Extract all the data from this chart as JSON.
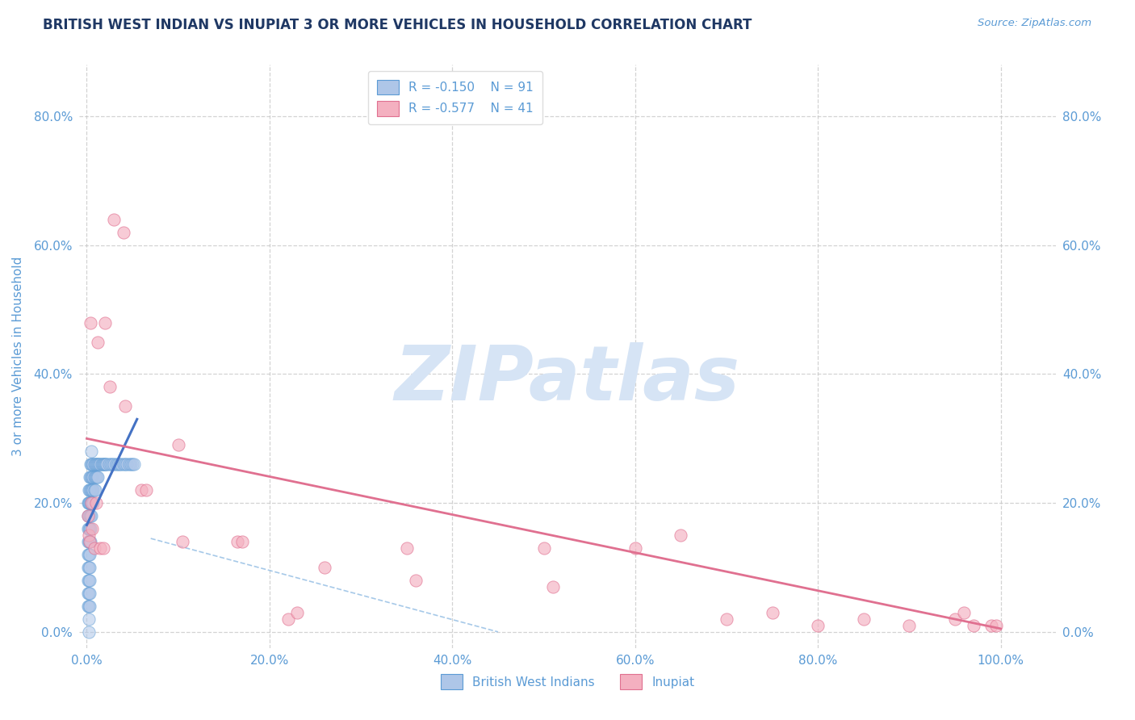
{
  "title": "BRITISH WEST INDIAN VS INUPIAT 3 OR MORE VEHICLES IN HOUSEHOLD CORRELATION CHART",
  "source_text": "Source: ZipAtlas.com",
  "ylabel": "3 or more Vehicles in Household",
  "xlim": [
    -0.008,
    1.06
  ],
  "ylim": [
    -0.025,
    0.88
  ],
  "xticks": [
    0.0,
    0.2,
    0.4,
    0.6,
    0.8,
    1.0
  ],
  "xtick_labels": [
    "0.0%",
    "20.0%",
    "40.0%",
    "60.0%",
    "80.0%",
    "100.0%"
  ],
  "yticks": [
    0.0,
    0.2,
    0.4,
    0.6,
    0.8
  ],
  "ytick_labels": [
    "0.0%",
    "20.0%",
    "40.0%",
    "60.0%",
    "80.0%"
  ],
  "title_color": "#1F3864",
  "title_fontsize": 12,
  "axis_color": "#5B9BD5",
  "tick_color": "#5B9BD5",
  "grid_color": "#C8C8C8",
  "background_color": "#FFFFFF",
  "watermark_text": "ZIPatlas",
  "legend_r_blue": "-0.150",
  "legend_n_blue": "91",
  "legend_r_pink": "-0.577",
  "legend_n_pink": "41",
  "blue_fill": "#AEC6E8",
  "blue_edge": "#5B9BD5",
  "pink_fill": "#F4B0C0",
  "pink_edge": "#E07090",
  "blue_line_color": "#4472C4",
  "pink_line_color": "#E07090",
  "dashed_line_color": "#9DC3E6",
  "watermark_color": "#D6E4F5",
  "watermark_fontsize": 68,
  "blue_x": [
    0.001,
    0.001,
    0.001,
    0.001,
    0.001,
    0.001,
    0.001,
    0.001,
    0.001,
    0.002,
    0.002,
    0.002,
    0.002,
    0.002,
    0.002,
    0.002,
    0.002,
    0.002,
    0.002,
    0.002,
    0.002,
    0.002,
    0.003,
    0.003,
    0.003,
    0.003,
    0.003,
    0.003,
    0.003,
    0.003,
    0.003,
    0.003,
    0.003,
    0.004,
    0.004,
    0.004,
    0.004,
    0.004,
    0.004,
    0.004,
    0.005,
    0.005,
    0.005,
    0.005,
    0.005,
    0.005,
    0.006,
    0.006,
    0.006,
    0.006,
    0.007,
    0.007,
    0.007,
    0.007,
    0.008,
    0.008,
    0.008,
    0.009,
    0.009,
    0.009,
    0.01,
    0.01,
    0.011,
    0.011,
    0.012,
    0.012,
    0.013,
    0.014,
    0.015,
    0.016,
    0.017,
    0.018,
    0.019,
    0.02,
    0.021,
    0.022,
    0.024,
    0.026,
    0.028,
    0.03,
    0.032,
    0.034,
    0.036,
    0.038,
    0.04,
    0.042,
    0.044,
    0.046,
    0.048,
    0.05,
    0.052
  ],
  "blue_y": [
    0.2,
    0.18,
    0.16,
    0.14,
    0.12,
    0.1,
    0.08,
    0.06,
    0.04,
    0.22,
    0.2,
    0.18,
    0.16,
    0.14,
    0.12,
    0.1,
    0.08,
    0.06,
    0.04,
    0.02,
    0.0,
    0.2,
    0.24,
    0.22,
    0.2,
    0.18,
    0.16,
    0.14,
    0.12,
    0.1,
    0.08,
    0.06,
    0.04,
    0.26,
    0.24,
    0.22,
    0.2,
    0.18,
    0.16,
    0.14,
    0.28,
    0.26,
    0.24,
    0.22,
    0.2,
    0.18,
    0.26,
    0.24,
    0.22,
    0.2,
    0.26,
    0.24,
    0.22,
    0.2,
    0.26,
    0.24,
    0.22,
    0.26,
    0.24,
    0.22,
    0.26,
    0.24,
    0.26,
    0.24,
    0.26,
    0.24,
    0.26,
    0.26,
    0.26,
    0.26,
    0.26,
    0.26,
    0.26,
    0.26,
    0.26,
    0.26,
    0.26,
    0.26,
    0.26,
    0.26,
    0.26,
    0.26,
    0.26,
    0.26,
    0.26,
    0.26,
    0.26,
    0.26,
    0.26,
    0.26,
    0.26
  ],
  "pink_x": [
    0.001,
    0.002,
    0.003,
    0.004,
    0.005,
    0.006,
    0.008,
    0.01,
    0.012,
    0.015,
    0.018,
    0.02,
    0.025,
    0.03,
    0.04,
    0.042,
    0.06,
    0.065,
    0.1,
    0.105,
    0.165,
    0.17,
    0.22,
    0.23,
    0.26,
    0.35,
    0.36,
    0.5,
    0.51,
    0.6,
    0.65,
    0.7,
    0.75,
    0.8,
    0.85,
    0.9,
    0.95,
    0.96,
    0.97,
    0.99,
    0.995
  ],
  "pink_y": [
    0.18,
    0.15,
    0.14,
    0.48,
    0.2,
    0.16,
    0.13,
    0.2,
    0.45,
    0.13,
    0.13,
    0.48,
    0.38,
    0.64,
    0.62,
    0.35,
    0.22,
    0.22,
    0.29,
    0.14,
    0.14,
    0.14,
    0.02,
    0.03,
    0.1,
    0.13,
    0.08,
    0.13,
    0.07,
    0.13,
    0.15,
    0.02,
    0.03,
    0.01,
    0.02,
    0.01,
    0.02,
    0.03,
    0.01,
    0.01,
    0.01
  ],
  "pink_intercept": 0.3,
  "pink_slope": -0.295
}
